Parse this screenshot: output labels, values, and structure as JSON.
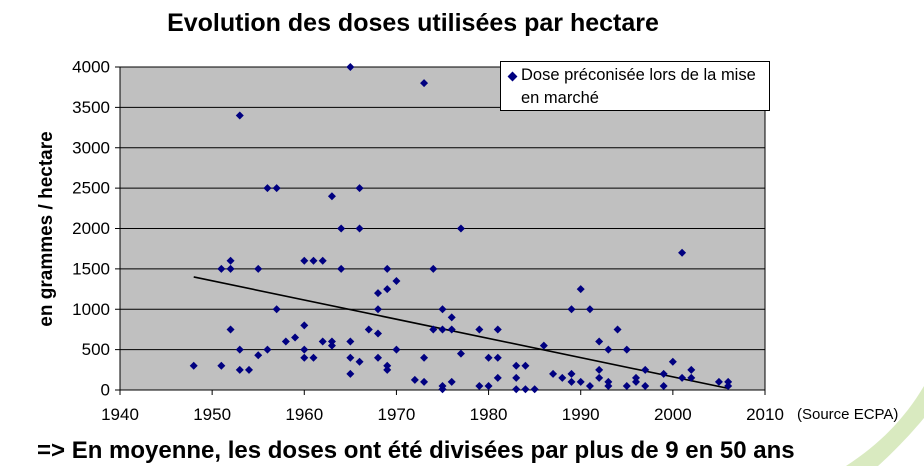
{
  "chart_data": {
    "type": "scatter",
    "title": "Evolution des doses utilisées par hectare",
    "ylabel": "en grammes / hectare",
    "xlim": [
      1940,
      2010
    ],
    "ylim": [
      0,
      4000
    ],
    "xticks": [
      1940,
      1950,
      1960,
      1970,
      1980,
      1990,
      2000,
      2010
    ],
    "yticks": [
      0,
      500,
      1000,
      1500,
      2000,
      2500,
      3000,
      3500,
      4000
    ],
    "grid": "horizontal",
    "legend_position": "top-right",
    "source_note": "(Source ECPA)",
    "series": [
      {
        "name": "Dose préconisée lors de la mise en marché",
        "marker": "diamond",
        "color": "#000080",
        "points": [
          [
            1948,
            300
          ],
          [
            1951,
            1500
          ],
          [
            1951,
            300
          ],
          [
            1952,
            1600
          ],
          [
            1952,
            1500
          ],
          [
            1952,
            750
          ],
          [
            1953,
            3400
          ],
          [
            1953,
            500
          ],
          [
            1953,
            250
          ],
          [
            1954,
            250
          ],
          [
            1955,
            1500
          ],
          [
            1955,
            430
          ],
          [
            1956,
            2500
          ],
          [
            1956,
            500
          ],
          [
            1957,
            2500
          ],
          [
            1957,
            1000
          ],
          [
            1958,
            600
          ],
          [
            1959,
            650
          ],
          [
            1960,
            1600
          ],
          [
            1960,
            800
          ],
          [
            1960,
            500
          ],
          [
            1960,
            400
          ],
          [
            1961,
            1600
          ],
          [
            1961,
            400
          ],
          [
            1962,
            1600
          ],
          [
            1962,
            600
          ],
          [
            1963,
            2400
          ],
          [
            1963,
            600
          ],
          [
            1963,
            550
          ],
          [
            1964,
            2000
          ],
          [
            1964,
            1500
          ],
          [
            1965,
            4000
          ],
          [
            1965,
            600
          ],
          [
            1965,
            400
          ],
          [
            1965,
            200
          ],
          [
            1966,
            2500
          ],
          [
            1966,
            2000
          ],
          [
            1966,
            350
          ],
          [
            1967,
            750
          ],
          [
            1968,
            1200
          ],
          [
            1968,
            1000
          ],
          [
            1968,
            700
          ],
          [
            1968,
            400
          ],
          [
            1969,
            1500
          ],
          [
            1969,
            1250
          ],
          [
            1969,
            300
          ],
          [
            1969,
            250
          ],
          [
            1970,
            1350
          ],
          [
            1970,
            500
          ],
          [
            1972,
            125
          ],
          [
            1973,
            3800
          ],
          [
            1973,
            400
          ],
          [
            1973,
            100
          ],
          [
            1974,
            1500
          ],
          [
            1974,
            750
          ],
          [
            1975,
            1000
          ],
          [
            1975,
            750
          ],
          [
            1975,
            50
          ],
          [
            1975,
            10
          ],
          [
            1976,
            900
          ],
          [
            1976,
            750
          ],
          [
            1976,
            100
          ],
          [
            1977,
            2000
          ],
          [
            1977,
            450
          ],
          [
            1979,
            750
          ],
          [
            1979,
            50
          ],
          [
            1980,
            400
          ],
          [
            1980,
            50
          ],
          [
            1981,
            750
          ],
          [
            1981,
            400
          ],
          [
            1981,
            150
          ],
          [
            1983,
            300
          ],
          [
            1983,
            150
          ],
          [
            1983,
            10
          ],
          [
            1984,
            300
          ],
          [
            1984,
            10
          ],
          [
            1985,
            10
          ],
          [
            1986,
            550
          ],
          [
            1987,
            200
          ],
          [
            1988,
            150
          ],
          [
            1989,
            1000
          ],
          [
            1989,
            200
          ],
          [
            1989,
            100
          ],
          [
            1990,
            1250
          ],
          [
            1990,
            100
          ],
          [
            1991,
            1000
          ],
          [
            1991,
            50
          ],
          [
            1992,
            600
          ],
          [
            1992,
            250
          ],
          [
            1992,
            150
          ],
          [
            1993,
            500
          ],
          [
            1993,
            100
          ],
          [
            1993,
            50
          ],
          [
            1994,
            750
          ],
          [
            1995,
            500
          ],
          [
            1995,
            50
          ],
          [
            1996,
            150
          ],
          [
            1996,
            100
          ],
          [
            1997,
            250
          ],
          [
            1997,
            50
          ],
          [
            1999,
            200
          ],
          [
            1999,
            50
          ],
          [
            2000,
            350
          ],
          [
            2001,
            1700
          ],
          [
            2001,
            150
          ],
          [
            2002,
            250
          ],
          [
            2002,
            150
          ],
          [
            2005,
            100
          ],
          [
            2006,
            100
          ],
          [
            2006,
            50
          ]
        ]
      }
    ],
    "trendline": {
      "x": [
        1948,
        2006
      ],
      "y": [
        1400,
        20
      ],
      "color": "#000000"
    }
  },
  "conclusion": "=> En moyenne, les doses ont été divisées par plus de 9 en 50 ans",
  "colors": {
    "plot_background": "#C0C0C0",
    "gridline": "#000000",
    "axis": "#000000",
    "decoration_green": "#D9EAC0"
  }
}
